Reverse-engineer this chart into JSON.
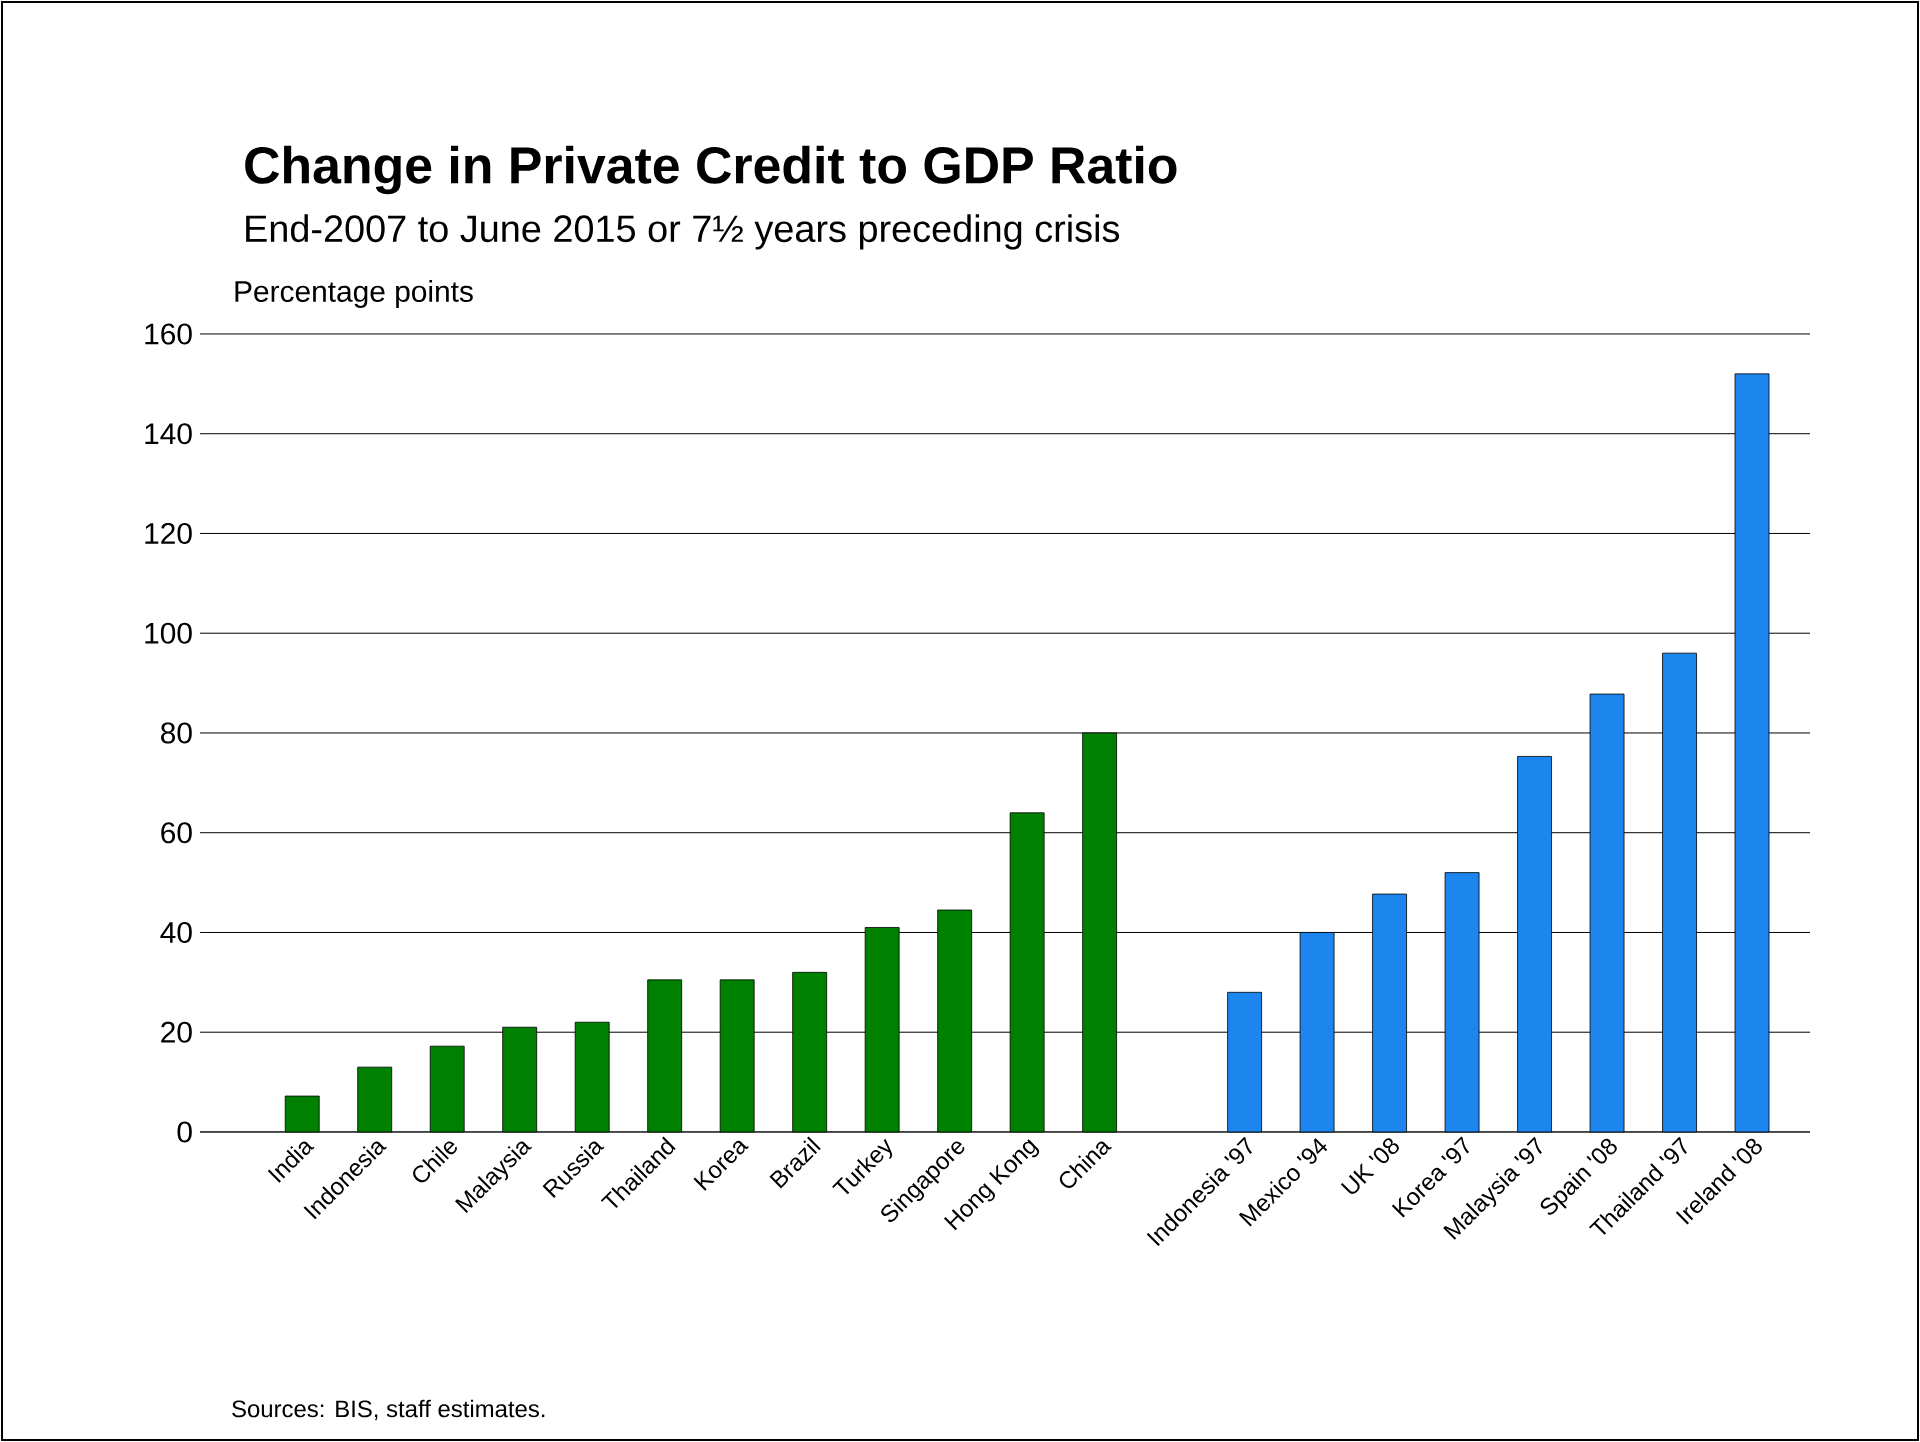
{
  "chart_data": {
    "type": "bar",
    "title": "Change in Private Credit to GDP Ratio",
    "subtitle": "End-2007 to June 2015 or 7½ years preceding crisis",
    "ylabel": "Percentage points",
    "annotations": [
      "Sources:  BIS, staff estimates."
    ],
    "categories": [
      "India",
      "Indonesia",
      "Chile",
      "Malaysia",
      "Russia",
      "Thailand",
      "Korea",
      "Brazil",
      "Turkey",
      "Singapore",
      "Hong Kong",
      "China",
      null,
      "Indonesia '97",
      "Mexico '94",
      "UK '08",
      "Korea '97",
      "Malaysia '97",
      "Spain '08",
      "Thailand '97",
      "Ireland '08"
    ],
    "values": [
      7.2,
      13,
      17.2,
      21,
      22,
      30.5,
      30.5,
      32,
      41,
      44.5,
      64,
      80,
      null,
      28,
      40,
      47.7,
      52,
      75.3,
      87.8,
      96,
      152
    ],
    "colors": [
      "#008000",
      "#008000",
      "#008000",
      "#008000",
      "#008000",
      "#008000",
      "#008000",
      "#008000",
      "#008000",
      "#008000",
      "#008000",
      "#008000",
      null,
      "#1c86ee",
      "#1c86ee",
      "#1c86ee",
      "#1c86ee",
      "#1c86ee",
      "#1c86ee",
      "#1c86ee",
      "#1c86ee"
    ],
    "ylim": [
      0,
      160
    ],
    "yticks": [
      0,
      20,
      40,
      60,
      80,
      100,
      120,
      140,
      160
    ],
    "grid": "y"
  }
}
